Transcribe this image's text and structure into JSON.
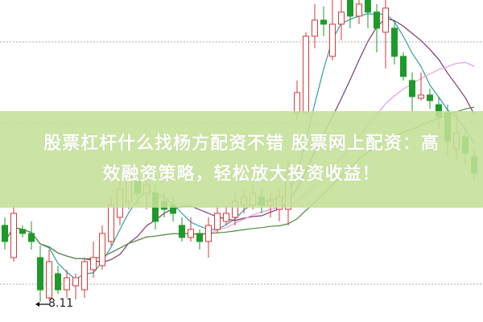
{
  "banner": {
    "line1": "股票杠杆什么找杨方配资不错 股票网上配资：高",
    "line2": "效融资策略，轻松放大投资收益！",
    "background": "#c4e096"
  },
  "chart_data": {
    "type": "candlestick",
    "title": "",
    "xlabel": "",
    "ylabel": "",
    "grid": "horizontal dotted",
    "gridlines": [
      11.34,
      10.33,
      9.33,
      8.33
    ],
    "annotations": [
      {
        "text": "8.11",
        "price": 8.11,
        "candle_index": 4,
        "marker": "left-arrow"
      }
    ],
    "colors": {
      "up": "#d63a3a",
      "down": "#1e9a2a",
      "ma5": "#2e9ea0",
      "ma10": "#7b3a6c",
      "ma20": "#e59ee0",
      "ma30": "#4f8a40",
      "grid": "#aaaaaa"
    },
    "moving_averages": [
      5,
      10,
      20,
      30
    ],
    "ohlc": [
      [
        9.06,
        8.86,
        9.16,
        8.76
      ],
      [
        8.66,
        9.21,
        9.31,
        8.61
      ],
      [
        9.01,
        8.96,
        9.06,
        8.91
      ],
      [
        8.96,
        8.86,
        9.11,
        8.76
      ],
      [
        8.66,
        8.26,
        8.81,
        8.11
      ],
      [
        8.16,
        8.61,
        8.76,
        8.14
      ],
      [
        8.46,
        8.26,
        8.56,
        8.21
      ],
      [
        8.26,
        8.41,
        8.51,
        8.16
      ],
      [
        8.31,
        8.41,
        8.46,
        8.14
      ],
      [
        8.26,
        8.61,
        8.66,
        8.16
      ],
      [
        8.51,
        8.66,
        8.86,
        8.41
      ],
      [
        8.56,
        8.96,
        9.06,
        8.51
      ],
      [
        8.86,
        9.31,
        9.41,
        8.81
      ],
      [
        9.16,
        9.51,
        9.61,
        9.06
      ],
      [
        9.36,
        9.66,
        9.76,
        9.26
      ],
      [
        9.61,
        9.46,
        9.71,
        9.31
      ],
      [
        9.46,
        9.56,
        9.86,
        9.26
      ],
      [
        9.46,
        9.11,
        9.56,
        9.01
      ],
      [
        9.36,
        9.26,
        9.46,
        9.16
      ],
      [
        9.31,
        9.21,
        9.41,
        9.11
      ],
      [
        9.06,
        8.91,
        9.16,
        8.86
      ],
      [
        8.91,
        9.01,
        9.16,
        8.86
      ],
      [
        8.96,
        8.86,
        9.01,
        8.76
      ],
      [
        8.86,
        9.06,
        9.16,
        8.66
      ],
      [
        9.01,
        9.21,
        9.31,
        8.96
      ],
      [
        9.11,
        9.21,
        9.31,
        9.06
      ],
      [
        9.16,
        9.36,
        9.46,
        9.06
      ],
      [
        9.31,
        9.41,
        9.51,
        9.21
      ],
      [
        9.31,
        9.46,
        9.56,
        9.26
      ],
      [
        9.41,
        9.31,
        9.51,
        9.21
      ],
      [
        9.31,
        9.36,
        9.46,
        9.16
      ],
      [
        9.26,
        9.41,
        9.51,
        9.11
      ],
      [
        9.26,
        9.71,
        9.86,
        9.06
      ],
      [
        10.46,
        10.71,
        10.86,
        10.36
      ],
      [
        10.46,
        11.41,
        11.46,
        10.46
      ],
      [
        11.41,
        11.61,
        11.81,
        11.26
      ],
      [
        11.61,
        11.56,
        11.78,
        11.41
      ],
      [
        11.16,
        11.56,
        11.86,
        11.11
      ],
      [
        11.56,
        11.71,
        11.86,
        11.36
      ],
      [
        11.86,
        11.66,
        11.86,
        11.51
      ],
      [
        11.66,
        11.81,
        11.86,
        11.56
      ],
      [
        11.86,
        11.71,
        11.86,
        11.51
      ],
      [
        11.71,
        11.51,
        11.81,
        11.21
      ],
      [
        11.46,
        11.76,
        11.86,
        11.01
      ],
      [
        11.51,
        11.16,
        11.61,
        11.06
      ],
      [
        11.16,
        10.91,
        11.21,
        10.86
      ],
      [
        10.86,
        10.66,
        10.96,
        10.46
      ],
      [
        10.64,
        10.68,
        10.96,
        10.61
      ],
      [
        10.68,
        10.61,
        10.76,
        10.51
      ],
      [
        10.56,
        10.41,
        10.66,
        10.26
      ],
      [
        10.46,
        10.11,
        10.56,
        9.91
      ],
      [
        10.01,
        10.21,
        10.46,
        9.86
      ],
      [
        10.16,
        9.96,
        10.26,
        9.81
      ],
      [
        9.91,
        9.71,
        10.01,
        9.61
      ]
    ]
  }
}
